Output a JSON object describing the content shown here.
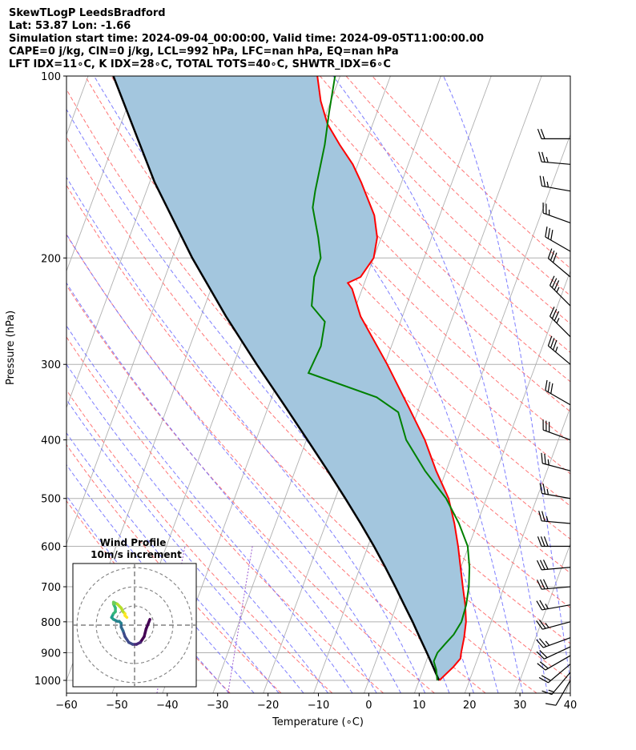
{
  "title_lines": [
    "SkewTLogP LeedsBradford",
    "Lat: 53.87   Lon: -1.66",
    "Simulation start time: 2024-09-04_00:00:00, Valid time: 2024-09-05T11:00:00.00",
    "CAPE=0 j/kg, CIN=0 j/kg, LCL=992 hPa, LFC=nan hPa, EQ=nan hPa",
    "LFT IDX=11∘C, K IDX=28∘C, TOTAL TOTS=40∘C, SHWTR_IDX=6∘C"
  ],
  "chart_data": {
    "type": "line",
    "subtype": "skew-T log-P diagram",
    "xlabel": "Temperature (∘C)",
    "ylabel": "Pressure (hPa)",
    "xlim": [
      -60,
      40
    ],
    "ylim": [
      1050,
      100
    ],
    "y_scale": "log",
    "xticks": [
      -60,
      -50,
      -40,
      -30,
      -20,
      -10,
      0,
      10,
      20,
      30,
      40
    ],
    "yticks": [
      1000,
      900,
      800,
      700,
      600,
      500,
      400,
      300,
      200,
      100
    ],
    "grid": true,
    "colors": {
      "temperature": "#ff0000",
      "dewpoint": "#008000",
      "parcel": "#000000",
      "cape_fill": "#a3c6de",
      "dry_adiabats": "#ff6666",
      "moist_adiabats": "#6666ff",
      "mixing_ratio": "#9b59d0",
      "isotherms": "#b0b0b0"
    },
    "temperature": [
      [
        1000,
        14
      ],
      [
        950,
        15.8
      ],
      [
        920,
        16.6
      ],
      [
        900,
        16.3
      ],
      [
        850,
        15.8
      ],
      [
        800,
        15
      ],
      [
        750,
        13.6
      ],
      [
        700,
        11.8
      ],
      [
        600,
        7.9
      ],
      [
        550,
        5.5
      ],
      [
        500,
        2.5
      ],
      [
        450,
        -2
      ],
      [
        400,
        -6.5
      ],
      [
        350,
        -12.5
      ],
      [
        300,
        -19.5
      ],
      [
        250,
        -28.3
      ],
      [
        225,
        -32
      ],
      [
        220,
        -33.3
      ],
      [
        215,
        -31.2
      ],
      [
        200,
        -30
      ],
      [
        185,
        -30.8
      ],
      [
        170,
        -33
      ],
      [
        150,
        -38
      ],
      [
        140,
        -41
      ],
      [
        130,
        -45
      ],
      [
        120,
        -49
      ],
      [
        110,
        -52
      ],
      [
        100,
        -54.5
      ]
    ],
    "dewpoint": [
      [
        1000,
        13.6
      ],
      [
        960,
        12.6
      ],
      [
        930,
        11.5
      ],
      [
        900,
        11.6
      ],
      [
        870,
        12.5
      ],
      [
        840,
        13.5
      ],
      [
        800,
        14.1
      ],
      [
        750,
        13.8
      ],
      [
        700,
        13
      ],
      [
        650,
        11.7
      ],
      [
        600,
        9.8
      ],
      [
        550,
        6.4
      ],
      [
        500,
        2
      ],
      [
        450,
        -4.2
      ],
      [
        400,
        -10.2
      ],
      [
        360,
        -13.8
      ],
      [
        340,
        -19.2
      ],
      [
        310,
        -34.5
      ],
      [
        280,
        -34
      ],
      [
        255,
        -35
      ],
      [
        240,
        -38.8
      ],
      [
        215,
        -40.4
      ],
      [
        200,
        -40.5
      ],
      [
        185,
        -42.5
      ],
      [
        165,
        -45.8
      ],
      [
        155,
        -46.5
      ],
      [
        130,
        -48
      ],
      [
        115,
        -49.5
      ],
      [
        100,
        -51
      ]
    ],
    "parcel": [
      [
        1000,
        14
      ],
      [
        992,
        13.6
      ],
      [
        950,
        11.8
      ],
      [
        900,
        9.5
      ],
      [
        850,
        7
      ],
      [
        800,
        4.4
      ],
      [
        750,
        1.5
      ],
      [
        700,
        -1.6
      ],
      [
        650,
        -5
      ],
      [
        600,
        -8.8
      ],
      [
        550,
        -13.1
      ],
      [
        500,
        -18
      ],
      [
        450,
        -23.5
      ],
      [
        400,
        -29.8
      ],
      [
        350,
        -37
      ],
      [
        300,
        -45.4
      ],
      [
        250,
        -55
      ],
      [
        200,
        -66
      ],
      [
        150,
        -79
      ],
      [
        100,
        -95
      ]
    ],
    "wind_barbs": [
      {
        "p": 1000,
        "speed_kt": 10,
        "dir": 210
      },
      {
        "p": 970,
        "speed_kt": 15,
        "dir": 220
      },
      {
        "p": 940,
        "speed_kt": 20,
        "dir": 230
      },
      {
        "p": 910,
        "speed_kt": 20,
        "dir": 240
      },
      {
        "p": 880,
        "speed_kt": 20,
        "dir": 245
      },
      {
        "p": 850,
        "speed_kt": 25,
        "dir": 250
      },
      {
        "p": 800,
        "speed_kt": 25,
        "dir": 255
      },
      {
        "p": 750,
        "speed_kt": 25,
        "dir": 260
      },
      {
        "p": 700,
        "speed_kt": 30,
        "dir": 265
      },
      {
        "p": 650,
        "speed_kt": 30,
        "dir": 265
      },
      {
        "p": 600,
        "speed_kt": 30,
        "dir": 270
      },
      {
        "p": 550,
        "speed_kt": 25,
        "dir": 275
      },
      {
        "p": 500,
        "speed_kt": 25,
        "dir": 280
      },
      {
        "p": 450,
        "speed_kt": 25,
        "dir": 285
      },
      {
        "p": 400,
        "speed_kt": 30,
        "dir": 290
      },
      {
        "p": 350,
        "speed_kt": 30,
        "dir": 300
      },
      {
        "p": 300,
        "speed_kt": 35,
        "dir": 310
      },
      {
        "p": 270,
        "speed_kt": 35,
        "dir": 315
      },
      {
        "p": 240,
        "speed_kt": 35,
        "dir": 315
      },
      {
        "p": 215,
        "speed_kt": 30,
        "dir": 310
      },
      {
        "p": 195,
        "speed_kt": 30,
        "dir": 300
      },
      {
        "p": 175,
        "speed_kt": 25,
        "dir": 290
      },
      {
        "p": 155,
        "speed_kt": 25,
        "dir": 280
      },
      {
        "p": 140,
        "speed_kt": 25,
        "dir": 275
      },
      {
        "p": 127,
        "speed_kt": 20,
        "dir": 270
      }
    ],
    "inset": {
      "title_line1": "Wind Profile",
      "title_line2": "10m/s increment",
      "hodograph_uv": [
        [
          8,
          3
        ],
        [
          6,
          -2
        ],
        [
          5,
          -6
        ],
        [
          3,
          -9
        ],
        [
          1,
          -10
        ],
        [
          -1,
          -10
        ],
        [
          -3,
          -9
        ],
        [
          -5,
          -6
        ],
        [
          -6,
          -3
        ],
        [
          -7,
          -1
        ],
        [
          -7,
          1
        ],
        [
          -8,
          2
        ],
        [
          -9,
          2
        ],
        [
          -11,
          3
        ],
        [
          -12,
          4
        ],
        [
          -11,
          6
        ],
        [
          -10,
          7
        ],
        [
          -10,
          9
        ],
        [
          -11,
          11
        ],
        [
          -11,
          12
        ],
        [
          -9,
          11
        ],
        [
          -7,
          9
        ],
        [
          -6,
          7
        ],
        [
          -5,
          6
        ],
        [
          -5,
          5
        ],
        [
          -4,
          4
        ]
      ]
    }
  }
}
